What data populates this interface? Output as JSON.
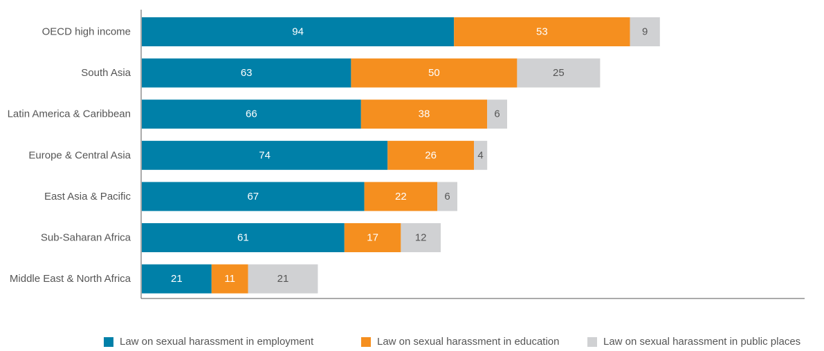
{
  "chart_data": {
    "type": "bar",
    "orientation": "horizontal",
    "stacked": true,
    "title": "",
    "xlabel": "",
    "ylabel": "",
    "grid": false,
    "legend_position": "bottom",
    "categories": [
      "OECD high income",
      "South Asia",
      "Latin America & Caribbean",
      "Europe & Central Asia",
      "East Asia & Pacific",
      "Sub-Saharan Africa",
      "Middle East & North Africa"
    ],
    "series": [
      {
        "name": "Law on sexual harassment in employment",
        "color": "#0080a8",
        "label_color": "#ffffff",
        "values": [
          94,
          63,
          66,
          74,
          67,
          61,
          21
        ]
      },
      {
        "name": "Law on sexual harassment in education",
        "color": "#f58f1f",
        "label_color": "#ffffff",
        "values": [
          53,
          50,
          38,
          26,
          22,
          17,
          11
        ]
      },
      {
        "name": "Law on sexual harassment in public places",
        "color": "#d0d1d3",
        "label_color": "#555555",
        "values": [
          9,
          25,
          6,
          4,
          6,
          12,
          21
        ]
      }
    ],
    "xlim": [
      0,
      200
    ]
  }
}
